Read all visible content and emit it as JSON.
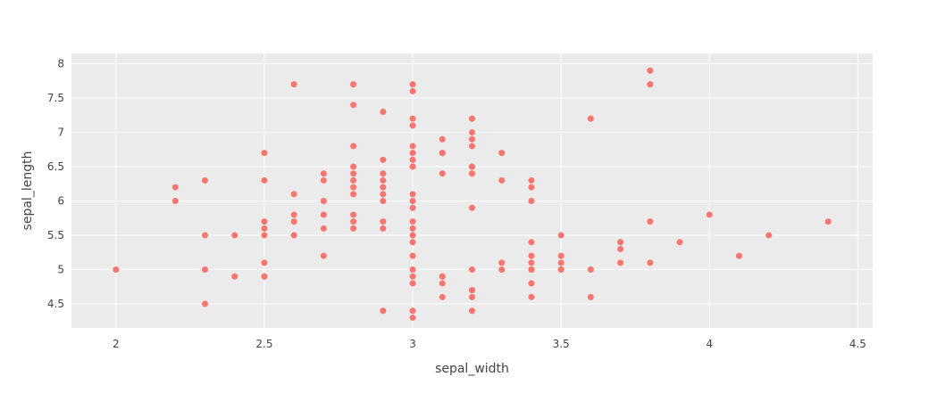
{
  "chart_data": {
    "type": "scatter",
    "xlabel": "sepal_width",
    "ylabel": "sepal_length",
    "xlim": [
      1.85,
      4.55
    ],
    "ylim": [
      4.15,
      8.15
    ],
    "x_ticks": [
      "2",
      "2.5",
      "3",
      "3.5",
      "4",
      "4.5"
    ],
    "y_ticks": [
      "4.5",
      "5",
      "5.5",
      "6",
      "6.5",
      "7",
      "7.5",
      "8"
    ],
    "grid": true,
    "colors": {
      "plot_bg": "#ebebeb",
      "grid": "#ffffff",
      "marker": "#f8766d"
    },
    "x": [
      2,
      2.2,
      2.2,
      2.3,
      2.3,
      2.3,
      2.3,
      2.4,
      2.4,
      2.5,
      2.5,
      2.5,
      2.5,
      2.5,
      2.5,
      2.5,
      2.5,
      2.6,
      2.6,
      2.6,
      2.6,
      2.6,
      2.7,
      2.7,
      2.7,
      2.7,
      2.7,
      2.7,
      2.7,
      2.8,
      2.8,
      2.8,
      2.8,
      2.8,
      2.8,
      2.8,
      2.8,
      2.8,
      2.8,
      2.8,
      2.9,
      2.9,
      2.9,
      2.9,
      2.9,
      2.9,
      2.9,
      2.9,
      2.9,
      2.9,
      3,
      3,
      3,
      3,
      3,
      3,
      3,
      3,
      3,
      3,
      3,
      3,
      3,
      3,
      3,
      3,
      3,
      3,
      3,
      3,
      3,
      3,
      3,
      3.1,
      3.1,
      3.1,
      3.1,
      3.1,
      3.1,
      3.1,
      3.1,
      3.2,
      3.2,
      3.2,
      3.2,
      3.2,
      3.2,
      3.2,
      3.2,
      3.2,
      3.2,
      3.2,
      3.2,
      3.2,
      3.2,
      3.3,
      3.3,
      3.3,
      3.3,
      3.4,
      3.4,
      3.4,
      3.4,
      3.4,
      3.4,
      3.4,
      3.4,
      3.4,
      3.4,
      3.4,
      3.5,
      3.5,
      3.5,
      3.5,
      3.5,
      3.6,
      3.6,
      3.6,
      3.7,
      3.7,
      3.7,
      3.8,
      3.8,
      3.8,
      3.8,
      3.9,
      4,
      4.1,
      4.2,
      4.4
    ],
    "y": [
      5,
      6.2,
      6,
      6.3,
      5.5,
      5,
      4.5,
      5.5,
      4.9,
      6.7,
      6.3,
      5.7,
      5.6,
      5.5,
      5.1,
      4.9,
      4.9,
      7.7,
      6.1,
      5.8,
      5.7,
      5.5,
      6.4,
      6.3,
      6,
      5.8,
      5.8,
      5.6,
      5.2,
      7.7,
      7.4,
      6.8,
      6.5,
      6.4,
      6.3,
      6.2,
      6.1,
      5.8,
      5.7,
      5.6,
      7.3,
      6.6,
      6.4,
      6.3,
      6.2,
      6.1,
      6,
      5.7,
      5.6,
      4.4,
      7.7,
      7.6,
      7.2,
      7.1,
      6.8,
      6.7,
      6.6,
      6.5,
      6.5,
      6.1,
      6,
      5.9,
      5.7,
      5.6,
      5.4,
      5,
      4.9,
      4.8,
      4.8,
      4.4,
      4.3,
      5.5,
      5.2,
      6.9,
      6.7,
      6.4,
      4.9,
      4.9,
      4.8,
      4.6,
      6.7,
      7.2,
      7,
      6.9,
      6.8,
      6.5,
      6.4,
      5.9,
      5,
      4.7,
      4.7,
      4.6,
      4.4,
      6.4,
      6.5,
      6.7,
      6.3,
      5.1,
      5,
      6.3,
      6.2,
      6,
      5.4,
      5.2,
      5.1,
      5,
      5,
      4.8,
      4.8,
      4.6,
      5.5,
      5.2,
      5.1,
      5,
      5,
      7.2,
      5,
      4.6,
      5.4,
      5.3,
      5.1,
      7.9,
      7.7,
      5.7,
      5.1,
      5.4,
      5.8,
      5.2,
      5.5,
      5.7
    ]
  }
}
